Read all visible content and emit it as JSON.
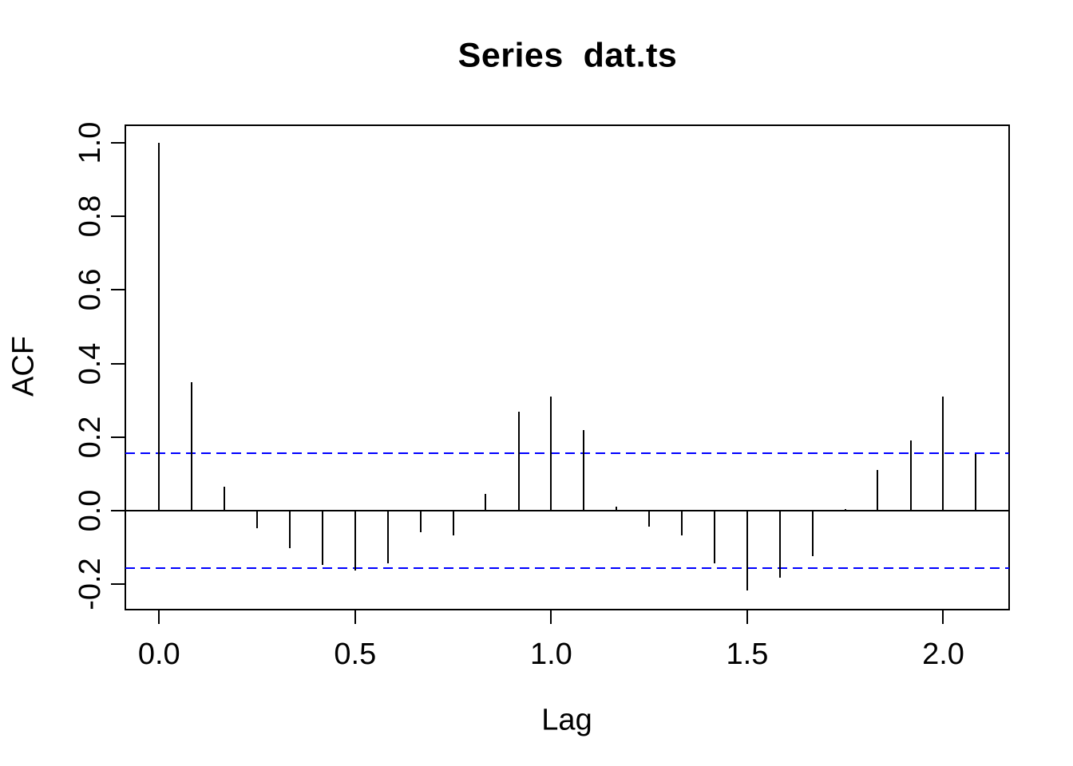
{
  "chart": {
    "title": "Series  dat.ts",
    "xlabel": "Lag",
    "ylabel": "ACF"
  },
  "chart_data": {
    "type": "bar",
    "subtype": "acf-spike-plot",
    "title": "Series  dat.ts",
    "xlabel": "Lag",
    "ylabel": "ACF",
    "x": [
      0,
      0.083,
      0.167,
      0.25,
      0.333,
      0.417,
      0.5,
      0.583,
      0.667,
      0.75,
      0.833,
      0.917,
      1.0,
      1.083,
      1.167,
      1.25,
      1.333,
      1.417,
      1.5,
      1.583,
      1.667,
      1.75,
      1.833,
      1.917,
      2.0,
      2.083
    ],
    "values": [
      1.0,
      0.35,
      0.065,
      -0.05,
      -0.105,
      -0.15,
      -0.165,
      -0.145,
      -0.06,
      -0.07,
      0.045,
      0.27,
      0.31,
      0.22,
      0.01,
      -0.045,
      -0.07,
      -0.145,
      -0.22,
      -0.185,
      -0.125,
      0.005,
      0.11,
      0.19,
      0.31,
      0.155
    ],
    "confidence_interval": 0.157,
    "x_ticks": [
      0.0,
      0.5,
      1.0,
      1.5,
      2.0
    ],
    "x_tick_labels": [
      "0.0",
      "0.5",
      "1.0",
      "1.5",
      "2.0"
    ],
    "y_ticks": [
      1.0,
      0.8,
      0.6,
      0.4,
      0.2,
      0.0,
      -0.2
    ],
    "y_tick_labels": [
      "1.0",
      "0.8",
      "0.6",
      "0.4",
      "0.2",
      "0.0",
      "-0.2"
    ],
    "xlim": [
      -0.086,
      2.168
    ],
    "ylim": [
      -0.269,
      1.048
    ],
    "grid": false,
    "legend": null,
    "colors": {
      "spike": "#000000",
      "axis": "#000000",
      "ci_line": "#0000FF",
      "background": "#ffffff"
    }
  }
}
